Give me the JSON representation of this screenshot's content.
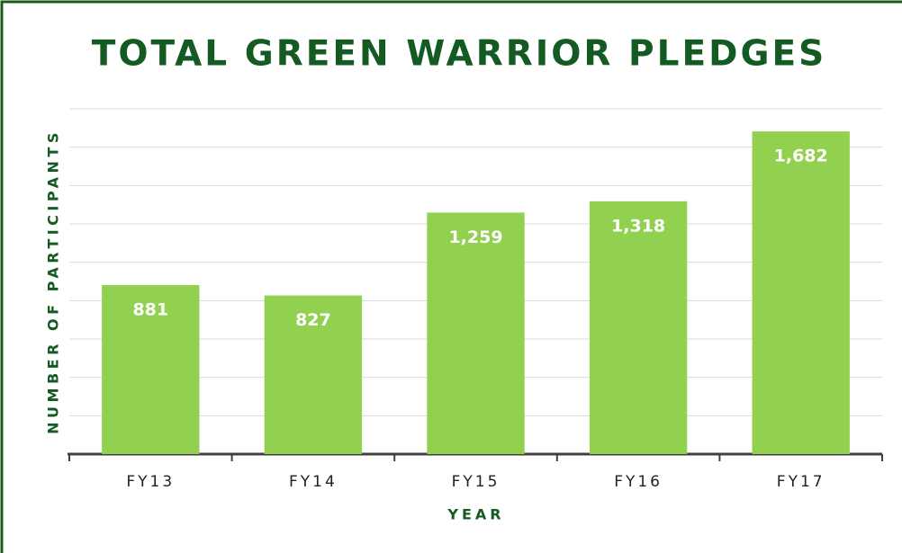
{
  "chart_data": {
    "type": "bar",
    "title": "TOTAL GREEN WARRIOR PLEDGES",
    "x_label": "YEAR",
    "y_label": "NUMBER OF PARTICIPANTS",
    "categories": [
      "FY13",
      "FY14",
      "FY15",
      "FY16",
      "FY17"
    ],
    "values": [
      881,
      827,
      1259,
      1318,
      1682
    ],
    "value_labels": [
      "881",
      "827",
      "1,259",
      "1,318",
      "1,682"
    ],
    "color": "#92d050",
    "ylim": [
      0,
      1800
    ],
    "yticks": [
      0,
      200,
      400,
      600,
      800,
      1000,
      1200,
      1400,
      1600,
      1800
    ],
    "grid": true
  }
}
